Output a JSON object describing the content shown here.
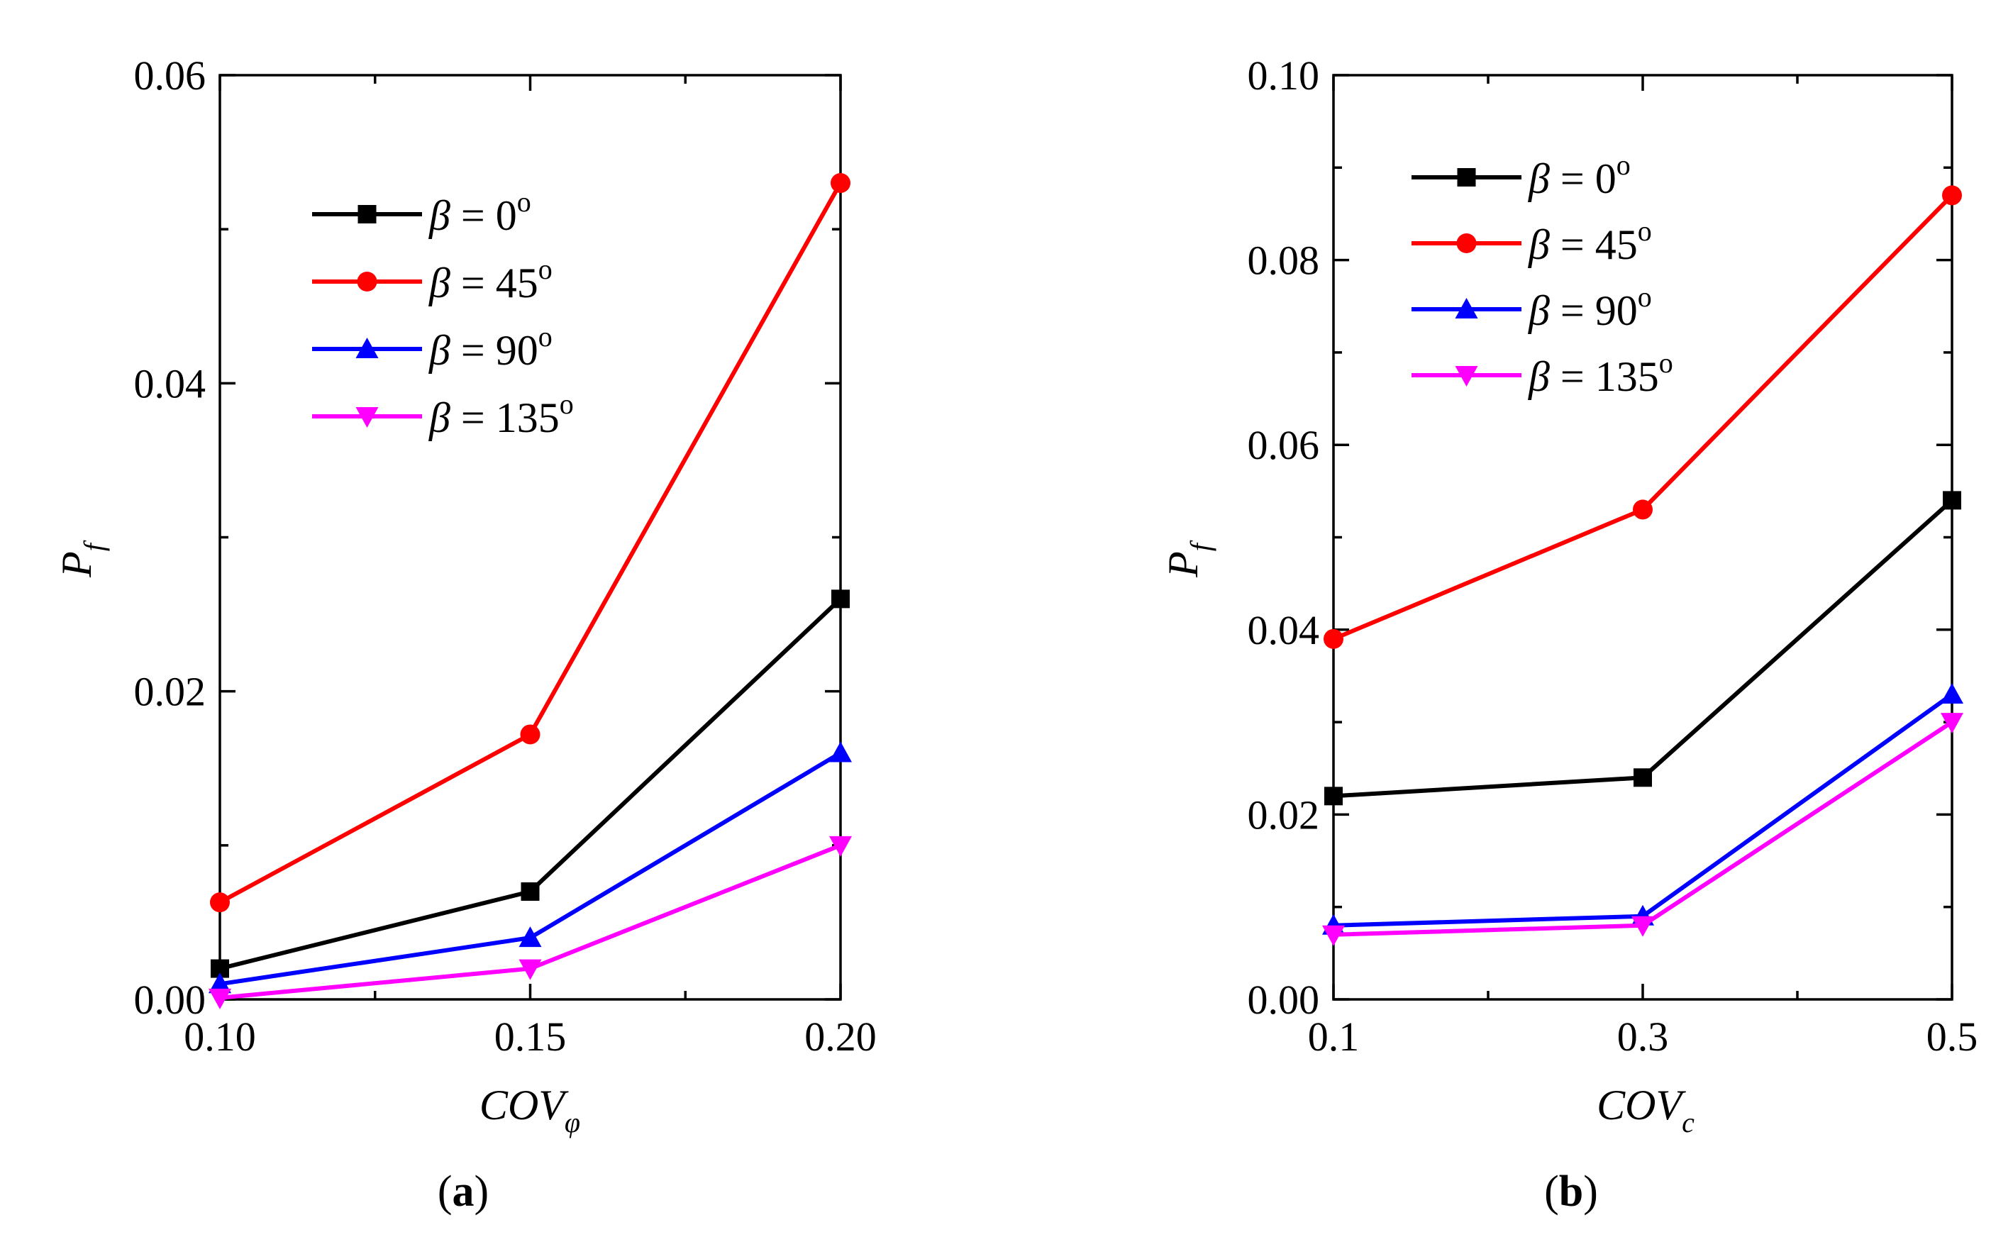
{
  "chart_data": [
    {
      "type": "line",
      "panel_label": "a",
      "xlabel": "COV",
      "xlabel_sub": "φ",
      "ylabel": "P",
      "ylabel_sub": "f",
      "xlim": [
        0.1,
        0.2
      ],
      "ylim": [
        0.0,
        0.06
      ],
      "x_ticks": [
        "0.10",
        "0.15",
        "0.20"
      ],
      "x_tick_values": [
        0.1,
        0.15,
        0.2
      ],
      "x_minor_values": [
        0.125,
        0.175
      ],
      "y_ticks": [
        "0.00",
        "0.02",
        "0.04",
        "0.06"
      ],
      "y_tick_values": [
        0.0,
        0.02,
        0.04,
        0.06
      ],
      "y_minor_values": [
        0.01,
        0.03,
        0.05
      ],
      "legend_position": "top-center",
      "x": [
        0.1,
        0.15,
        0.2
      ],
      "series": [
        {
          "name": "β = 0°",
          "greek": "β",
          "rest": " = 0",
          "sup": "o",
          "color": "#000000",
          "marker": "square",
          "values": [
            0.002,
            0.007,
            0.026
          ]
        },
        {
          "name": "β = 45°",
          "greek": "β",
          "rest": " = 45",
          "sup": "o",
          "color": "#ff0000",
          "marker": "circle",
          "values": [
            0.0063,
            0.0172,
            0.053
          ]
        },
        {
          "name": "β = 90°",
          "greek": "β",
          "rest": " = 90",
          "sup": "o",
          "color": "#0000ff",
          "marker": "triangle-up",
          "values": [
            0.001,
            0.004,
            0.016
          ]
        },
        {
          "name": "β = 135°",
          "greek": "β",
          "rest": " = 135",
          "sup": "o",
          "color": "#ff00ff",
          "marker": "triangle-down",
          "values": [
            0.0001,
            0.002,
            0.01
          ]
        }
      ]
    },
    {
      "type": "line",
      "panel_label": "b",
      "xlabel": "COV",
      "xlabel_sub": "c",
      "ylabel": "P",
      "ylabel_sub": "f",
      "xlim": [
        0.1,
        0.5
      ],
      "ylim": [
        0.0,
        0.1
      ],
      "x_ticks": [
        "0.1",
        "0.3",
        "0.5"
      ],
      "x_tick_values": [
        0.1,
        0.3,
        0.5
      ],
      "x_minor_values": [
        0.2,
        0.4
      ],
      "y_ticks": [
        "0.00",
        "0.02",
        "0.04",
        "0.06",
        "0.08",
        "0.10"
      ],
      "y_tick_values": [
        0.0,
        0.02,
        0.04,
        0.06,
        0.08,
        0.1
      ],
      "y_minor_values": [
        0.01,
        0.03,
        0.05,
        0.07,
        0.09
      ],
      "legend_position": "top-left",
      "x": [
        0.1,
        0.3,
        0.5
      ],
      "series": [
        {
          "name": "β = 0°",
          "greek": "β",
          "rest": " = 0",
          "sup": "o",
          "color": "#000000",
          "marker": "square",
          "values": [
            0.022,
            0.024,
            0.054
          ]
        },
        {
          "name": "β = 45°",
          "greek": "β",
          "rest": " = 45",
          "sup": "o",
          "color": "#ff0000",
          "marker": "circle",
          "values": [
            0.039,
            0.053,
            0.087
          ]
        },
        {
          "name": "β = 90°",
          "greek": "β",
          "rest": " = 90",
          "sup": "o",
          "color": "#0000ff",
          "marker": "triangle-up",
          "values": [
            0.008,
            0.009,
            0.033
          ]
        },
        {
          "name": "β = 135°",
          "greek": "β",
          "rest": " = 135",
          "sup": "o",
          "color": "#ff00ff",
          "marker": "triangle-down",
          "values": [
            0.007,
            0.008,
            0.03
          ]
        }
      ]
    }
  ]
}
